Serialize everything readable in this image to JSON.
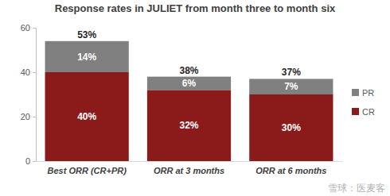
{
  "chart_data": {
    "type": "bar",
    "title": "Response rates in JULIET from month three to month six",
    "categories": [
      "Best ORR (CR+PR)",
      "ORR at 3 months",
      "ORR at 6 months"
    ],
    "stacked": true,
    "data_labels": true,
    "grid": false,
    "legend": "right",
    "series": [
      {
        "name": "CR",
        "color": "#8b1a1a",
        "values": [
          40,
          32,
          30
        ],
        "value_labels": [
          "40%",
          "32%",
          "30%"
        ]
      },
      {
        "name": "PR",
        "color": "#808080",
        "values": [
          14,
          6,
          7
        ],
        "value_labels": [
          "14%",
          "6%",
          "7%"
        ]
      }
    ],
    "totals": [
      53,
      38,
      37
    ],
    "total_labels": [
      "53%",
      "38%",
      "37%"
    ],
    "ylim": [
      0,
      60
    ],
    "yticks": [
      0,
      20,
      40,
      60
    ],
    "annotations": [
      "雪球：医麦客"
    ]
  }
}
